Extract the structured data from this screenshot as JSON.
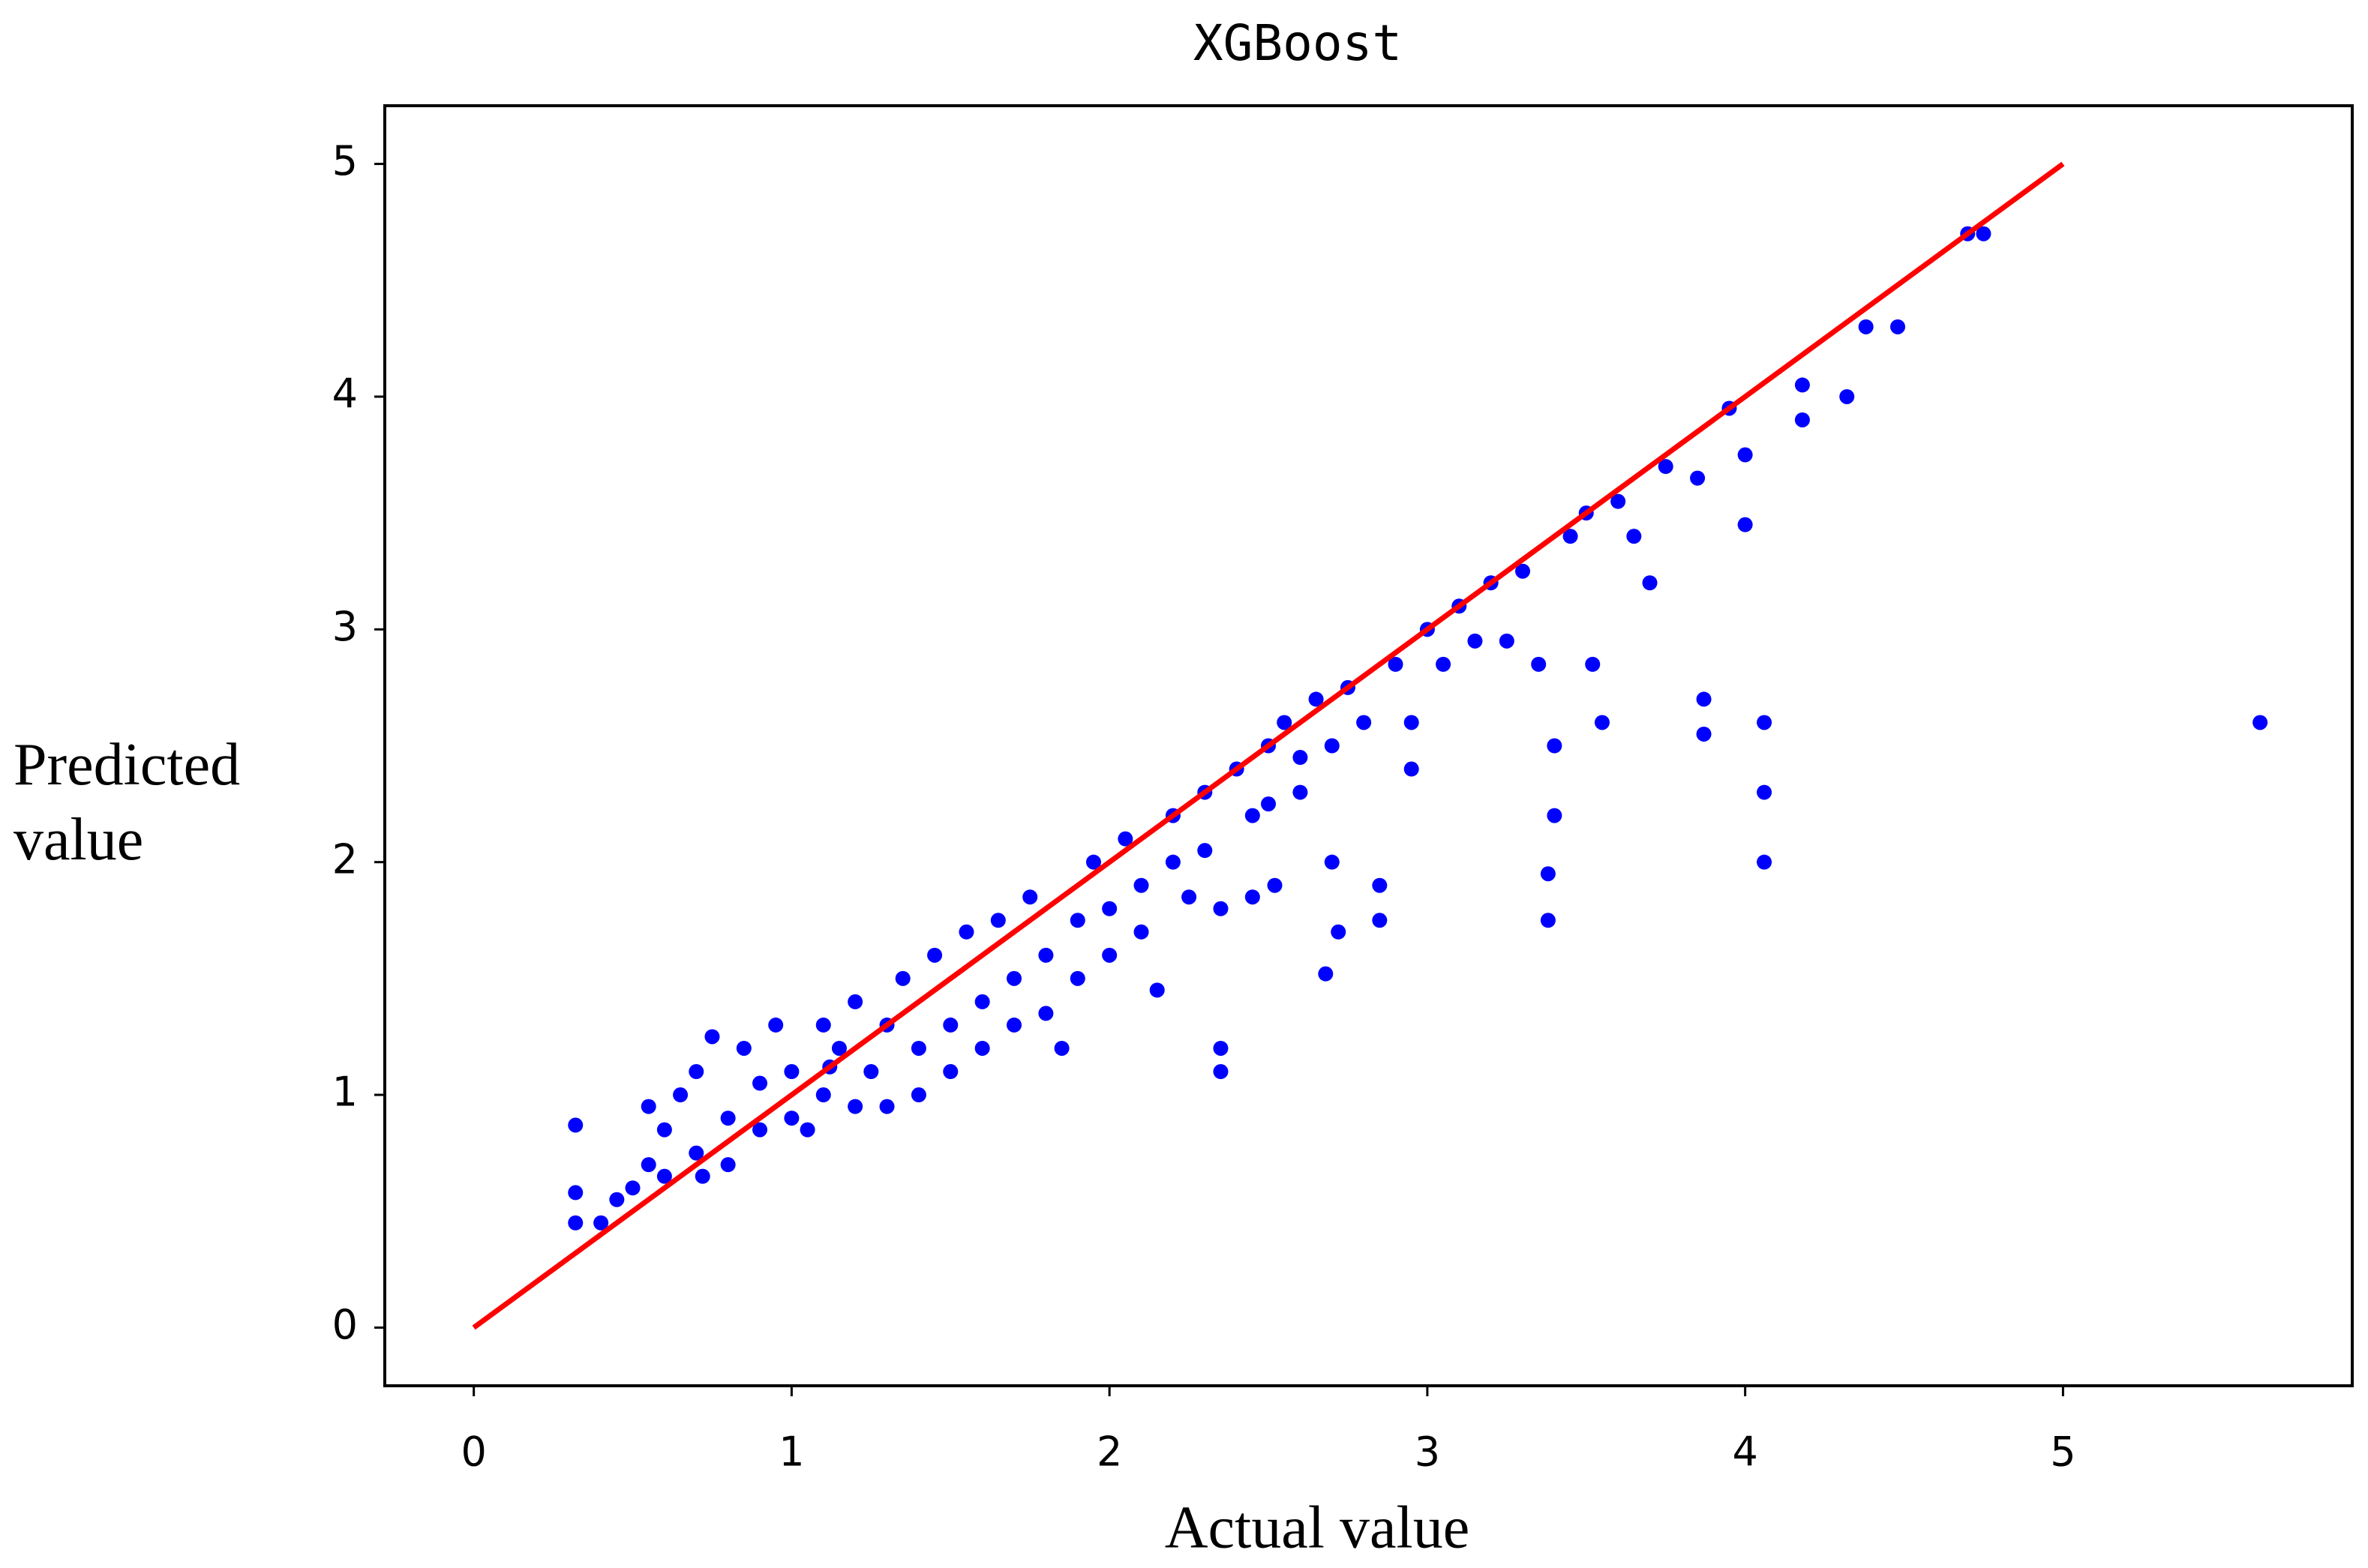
{
  "chart_data": {
    "type": "scatter",
    "title": "XGBoost",
    "xlabel": "Actual value",
    "ylabel": "Predicted value",
    "xlim": [
      -0.28,
      5.91
    ],
    "ylim": [
      -0.25,
      5.25
    ],
    "xticks": [
      0,
      1,
      2,
      3,
      4,
      5
    ],
    "yticks": [
      0,
      1,
      2,
      3,
      4,
      5
    ],
    "series": [
      {
        "type": "scatter",
        "color": "#0000ff",
        "x": [
          0.32,
          0.32,
          0.32,
          0.4,
          0.45,
          0.5,
          0.55,
          0.55,
          0.6,
          0.6,
          0.65,
          0.7,
          0.7,
          0.72,
          0.75,
          0.8,
          0.8,
          0.85,
          0.9,
          0.9,
          0.95,
          1.0,
          1.0,
          1.05,
          1.1,
          1.1,
          1.15,
          1.2,
          1.2,
          1.25,
          1.3,
          1.3,
          1.35,
          1.4,
          1.4,
          1.45,
          1.5,
          1.5,
          1.55,
          1.6,
          1.6,
          1.65,
          1.7,
          1.7,
          1.75,
          1.8,
          1.8,
          1.85,
          1.9,
          1.9,
          1.95,
          2.0,
          2.0,
          2.05,
          2.1,
          2.1,
          2.15,
          2.2,
          2.2,
          2.25,
          2.3,
          2.3,
          2.35,
          2.35,
          2.35,
          2.4,
          2.45,
          2.45,
          2.5,
          2.5,
          2.52,
          2.55,
          2.6,
          2.6,
          2.65,
          2.68,
          2.7,
          2.7,
          2.72,
          2.75,
          2.8,
          2.85,
          2.85,
          2.9,
          2.95,
          2.95,
          3.0,
          3.05,
          3.1,
          3.15,
          3.2,
          3.25,
          3.3,
          3.35,
          3.38,
          3.38,
          3.4,
          3.4,
          3.45,
          3.5,
          3.52,
          3.55,
          3.6,
          3.65,
          3.7,
          3.75,
          3.85,
          3.87,
          3.87,
          3.95,
          4.0,
          4.0,
          4.06,
          4.06,
          4.06,
          4.18,
          4.18,
          4.32,
          4.38,
          4.48,
          4.7,
          4.75,
          5.62,
          1.12
        ],
        "values": [
          0.87,
          0.58,
          0.45,
          0.45,
          0.55,
          0.6,
          0.95,
          0.7,
          0.65,
          0.85,
          1.0,
          0.75,
          1.1,
          0.65,
          1.25,
          0.9,
          0.7,
          1.2,
          0.85,
          1.05,
          1.3,
          0.9,
          1.1,
          0.85,
          1.3,
          1.0,
          1.2,
          0.95,
          1.4,
          1.1,
          1.3,
          0.95,
          1.5,
          1.2,
          1.0,
          1.6,
          1.3,
          1.1,
          1.7,
          1.4,
          1.2,
          1.75,
          1.5,
          1.3,
          1.85,
          1.6,
          1.35,
          1.2,
          1.75,
          1.5,
          2.0,
          1.8,
          1.6,
          2.1,
          1.9,
          1.7,
          1.45,
          2.2,
          2.0,
          1.85,
          2.3,
          2.05,
          1.8,
          1.1,
          1.2,
          2.4,
          2.2,
          1.85,
          2.5,
          2.25,
          1.9,
          2.6,
          2.45,
          2.3,
          2.7,
          1.52,
          2.5,
          2.0,
          1.7,
          2.75,
          2.6,
          1.9,
          1.75,
          2.85,
          2.4,
          2.6,
          3.0,
          2.85,
          3.1,
          2.95,
          3.2,
          2.95,
          3.25,
          2.85,
          1.75,
          1.95,
          2.5,
          2.2,
          3.4,
          3.5,
          2.85,
          2.6,
          3.55,
          3.4,
          3.2,
          3.7,
          3.65,
          2.7,
          2.55,
          3.95,
          3.45,
          3.75,
          2.6,
          2.3,
          2.0,
          4.05,
          3.9,
          4.0,
          4.3,
          4.3,
          4.7,
          4.7,
          2.6,
          1.12
        ]
      },
      {
        "type": "line",
        "color": "#ff0000",
        "x": [
          0,
          5
        ],
        "values": [
          0,
          5
        ]
      }
    ]
  }
}
